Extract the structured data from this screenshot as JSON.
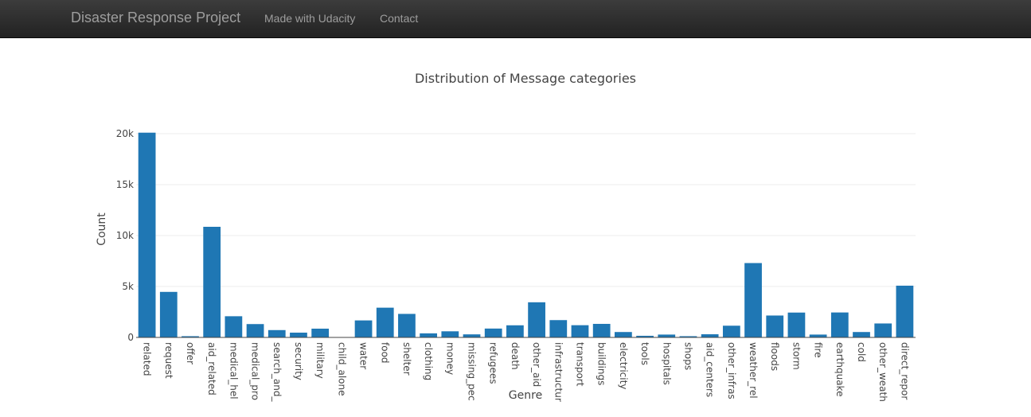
{
  "navbar": {
    "brand": "Disaster Response Project",
    "links": [
      "Made with Udacity",
      "Contact"
    ]
  },
  "colors": {
    "bar": "#1f77b4",
    "grid": "#eeeeee",
    "navbar": "#222222"
  },
  "chart_data": {
    "type": "bar",
    "title": "Distribution of Message categories",
    "xlabel": "Genre",
    "ylabel": "Count",
    "ylim": [
      0,
      20000
    ],
    "yticks": [
      0,
      5000,
      10000,
      15000,
      20000
    ],
    "ytick_labels": [
      "0",
      "5k",
      "10k",
      "15k",
      "20k"
    ],
    "grid": true,
    "categories": [
      "related",
      "request",
      "offer",
      "aid_related",
      "medical_hel",
      "medical_pro",
      "search_and_",
      "security",
      "military",
      "child_alone",
      "water",
      "food",
      "shelter",
      "clothing",
      "money",
      "missing_pec",
      "refugees",
      "death",
      "other_aid",
      "infrastructur",
      "transport",
      "buildings",
      "electricity",
      "tools",
      "hospitals",
      "shops",
      "aid_centers",
      "other_infras",
      "weather_rel",
      "floods",
      "storm",
      "fire",
      "earthquake",
      "cold",
      "other_weath",
      "direct_repor"
    ],
    "values": [
      20100,
      4470,
      120,
      10860,
      2080,
      1310,
      720,
      470,
      860,
      0,
      1670,
      2920,
      2310,
      400,
      600,
      300,
      870,
      1190,
      3450,
      1700,
      1200,
      1330,
      530,
      160,
      280,
      120,
      310,
      1150,
      7300,
      2150,
      2440,
      280,
      2450,
      530,
      1370,
      5080
    ]
  }
}
